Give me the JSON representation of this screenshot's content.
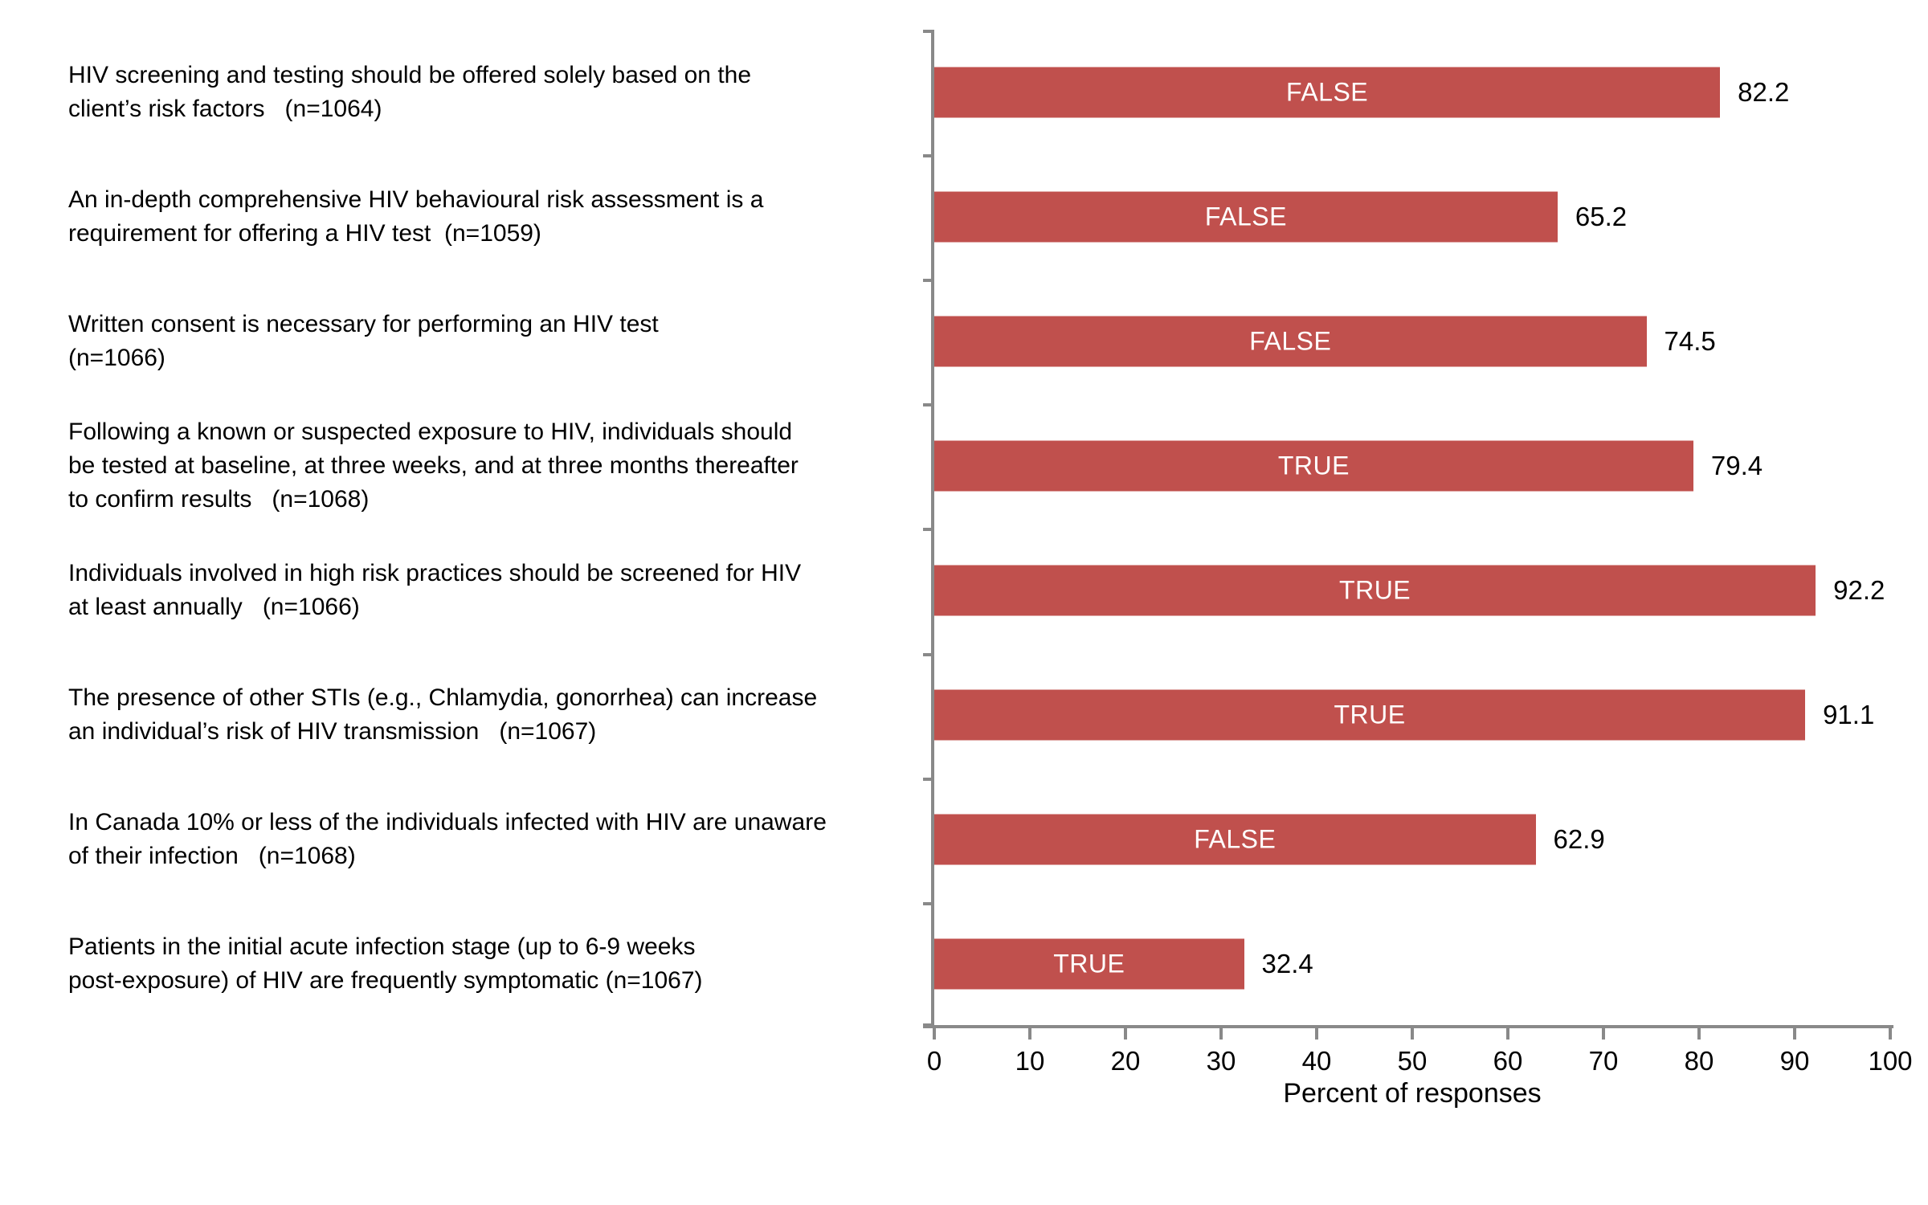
{
  "chart_data": {
    "type": "bar",
    "orientation": "horizontal",
    "title": "",
    "xlabel": "Percent of responses",
    "xlim": [
      0,
      100
    ],
    "x_ticks": [
      0,
      10,
      20,
      30,
      40,
      50,
      60,
      70,
      80,
      90,
      100
    ],
    "grid": false,
    "legend": false,
    "categories": [
      "HIV screening and testing should be offered solely based on the\nclient’s risk factors   (n=1064)",
      "An in-depth comprehensive HIV behavioural risk assessment is a\nrequirement for offering a HIV test  (n=1059)",
      "Written consent is necessary for performing an HIV test\n(n=1066)",
      "Following a known or suspected exposure to HIV, individuals should\nbe tested at baseline, at three weeks, and at three months thereafter\nto confirm results   (n=1068)",
      "Individuals involved in high risk practices should be screened for HIV\nat least annually   (n=1066)",
      "The presence of other STIs (e.g., Chlamydia, gonorrhea) can increase\nan individual’s risk of HIV transmission   (n=1067)",
      "In Canada 10% or less of the individuals infected with HIV are unaware\nof their infection   (n=1068)",
      "Patients in the initial acute infection stage (up to 6-9 weeks\npost-exposure) of HIV are frequently symptomatic (n=1067)"
    ],
    "values": [
      82.2,
      65.2,
      74.5,
      79.4,
      92.2,
      91.1,
      62.9,
      32.4
    ],
    "bar_labels": [
      "FALSE",
      "FALSE",
      "FALSE",
      "TRUE",
      "TRUE",
      "TRUE",
      "FALSE",
      "TRUE"
    ],
    "colors": {
      "bar": "#C0504D",
      "bar_label_text": "#FFFFFF",
      "axis": "#898989",
      "text": "#000000"
    }
  }
}
